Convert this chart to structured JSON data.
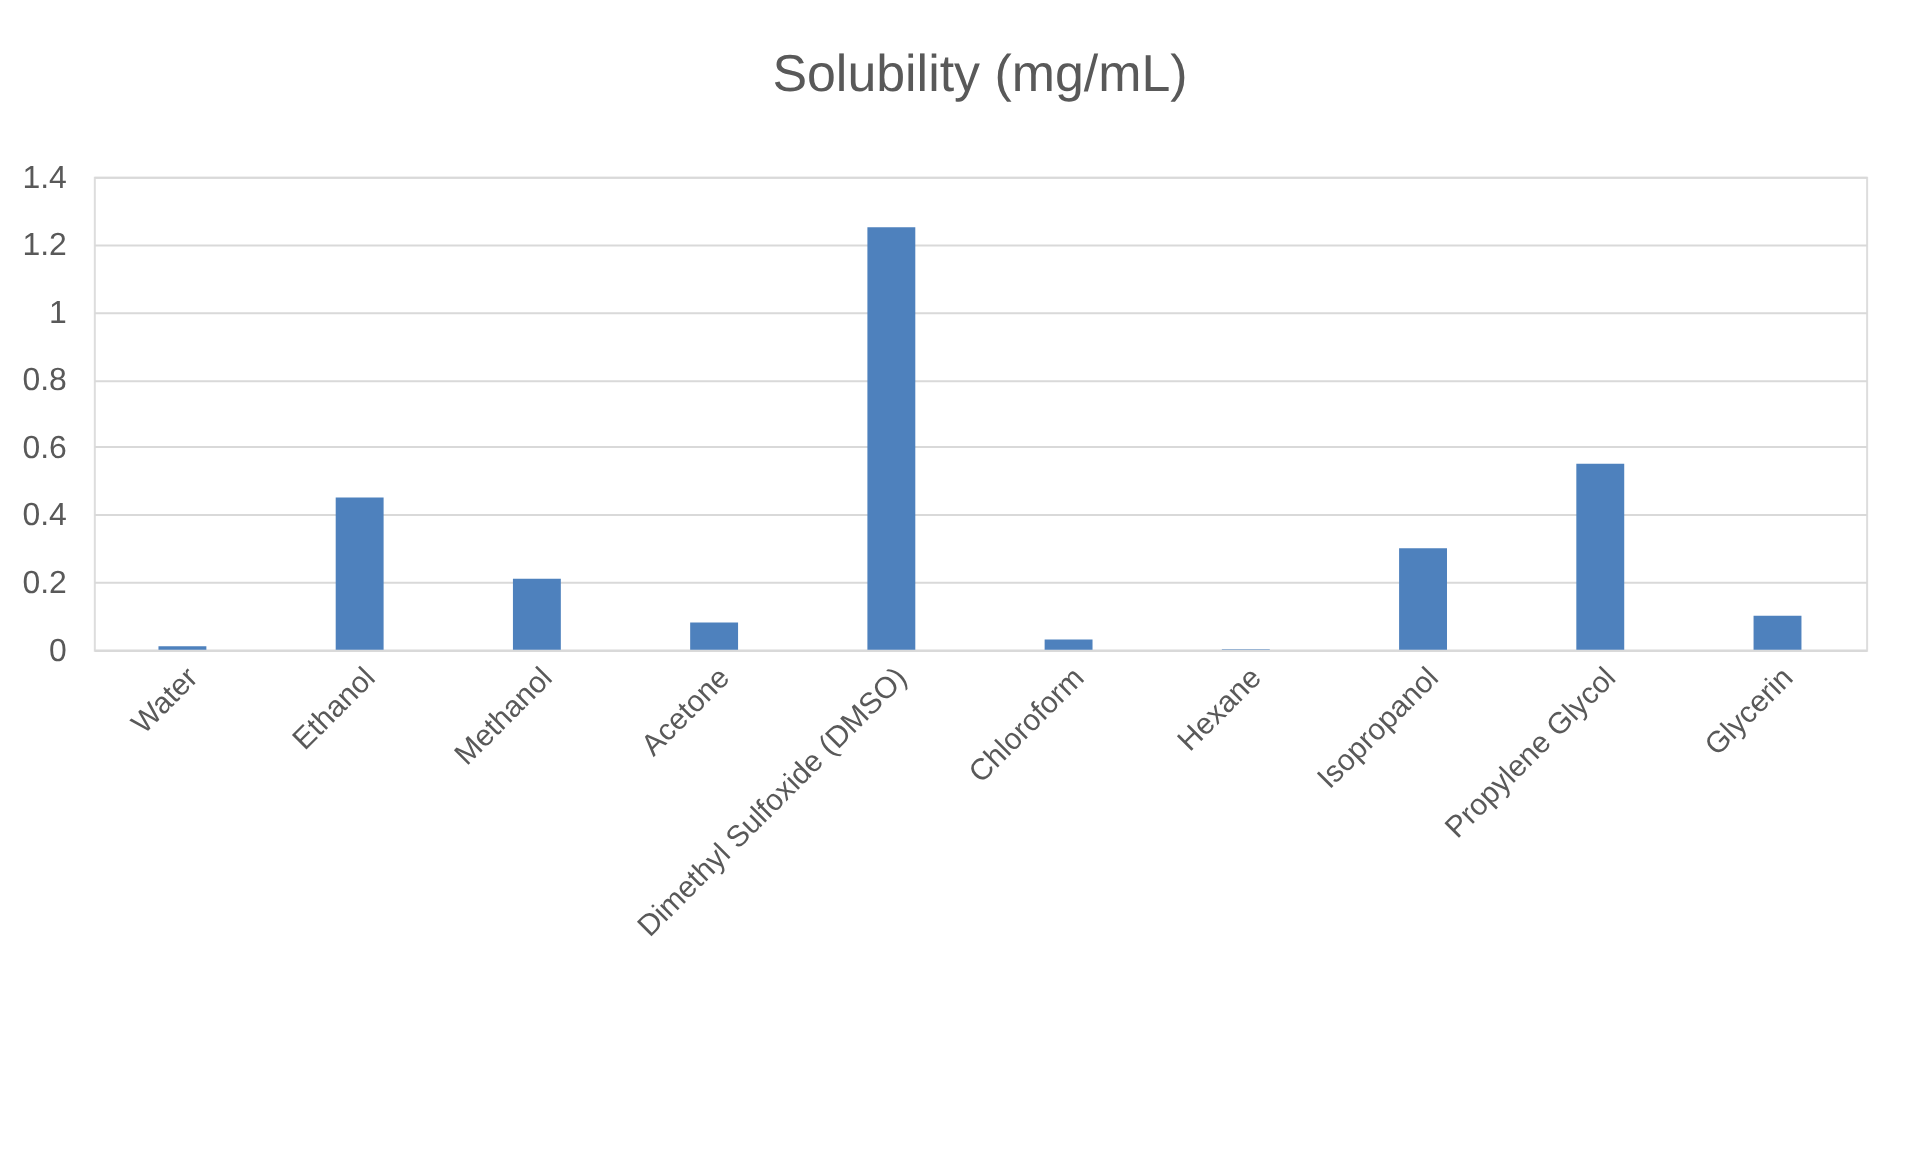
{
  "chart_data": {
    "type": "bar",
    "title": "Solubility (mg/mL)",
    "categories": [
      "Water",
      "Ethanol",
      "Methanol",
      "Acetone",
      "Dimethyl Sulfoxide (DMSO)",
      "Chloroform",
      "Hexane",
      "Isopropanol",
      "Propylene Glycol",
      "Glycerin"
    ],
    "values": [
      0.01,
      0.45,
      0.21,
      0.08,
      1.25,
      0.03,
      0.001,
      0.3,
      0.55,
      0.1
    ],
    "color": "#4e81bd",
    "ylim": [
      0,
      1.4
    ],
    "yticks": [
      0,
      0.2,
      0.4,
      0.6,
      0.8,
      1,
      1.2,
      1.4
    ],
    "grid": "y"
  }
}
